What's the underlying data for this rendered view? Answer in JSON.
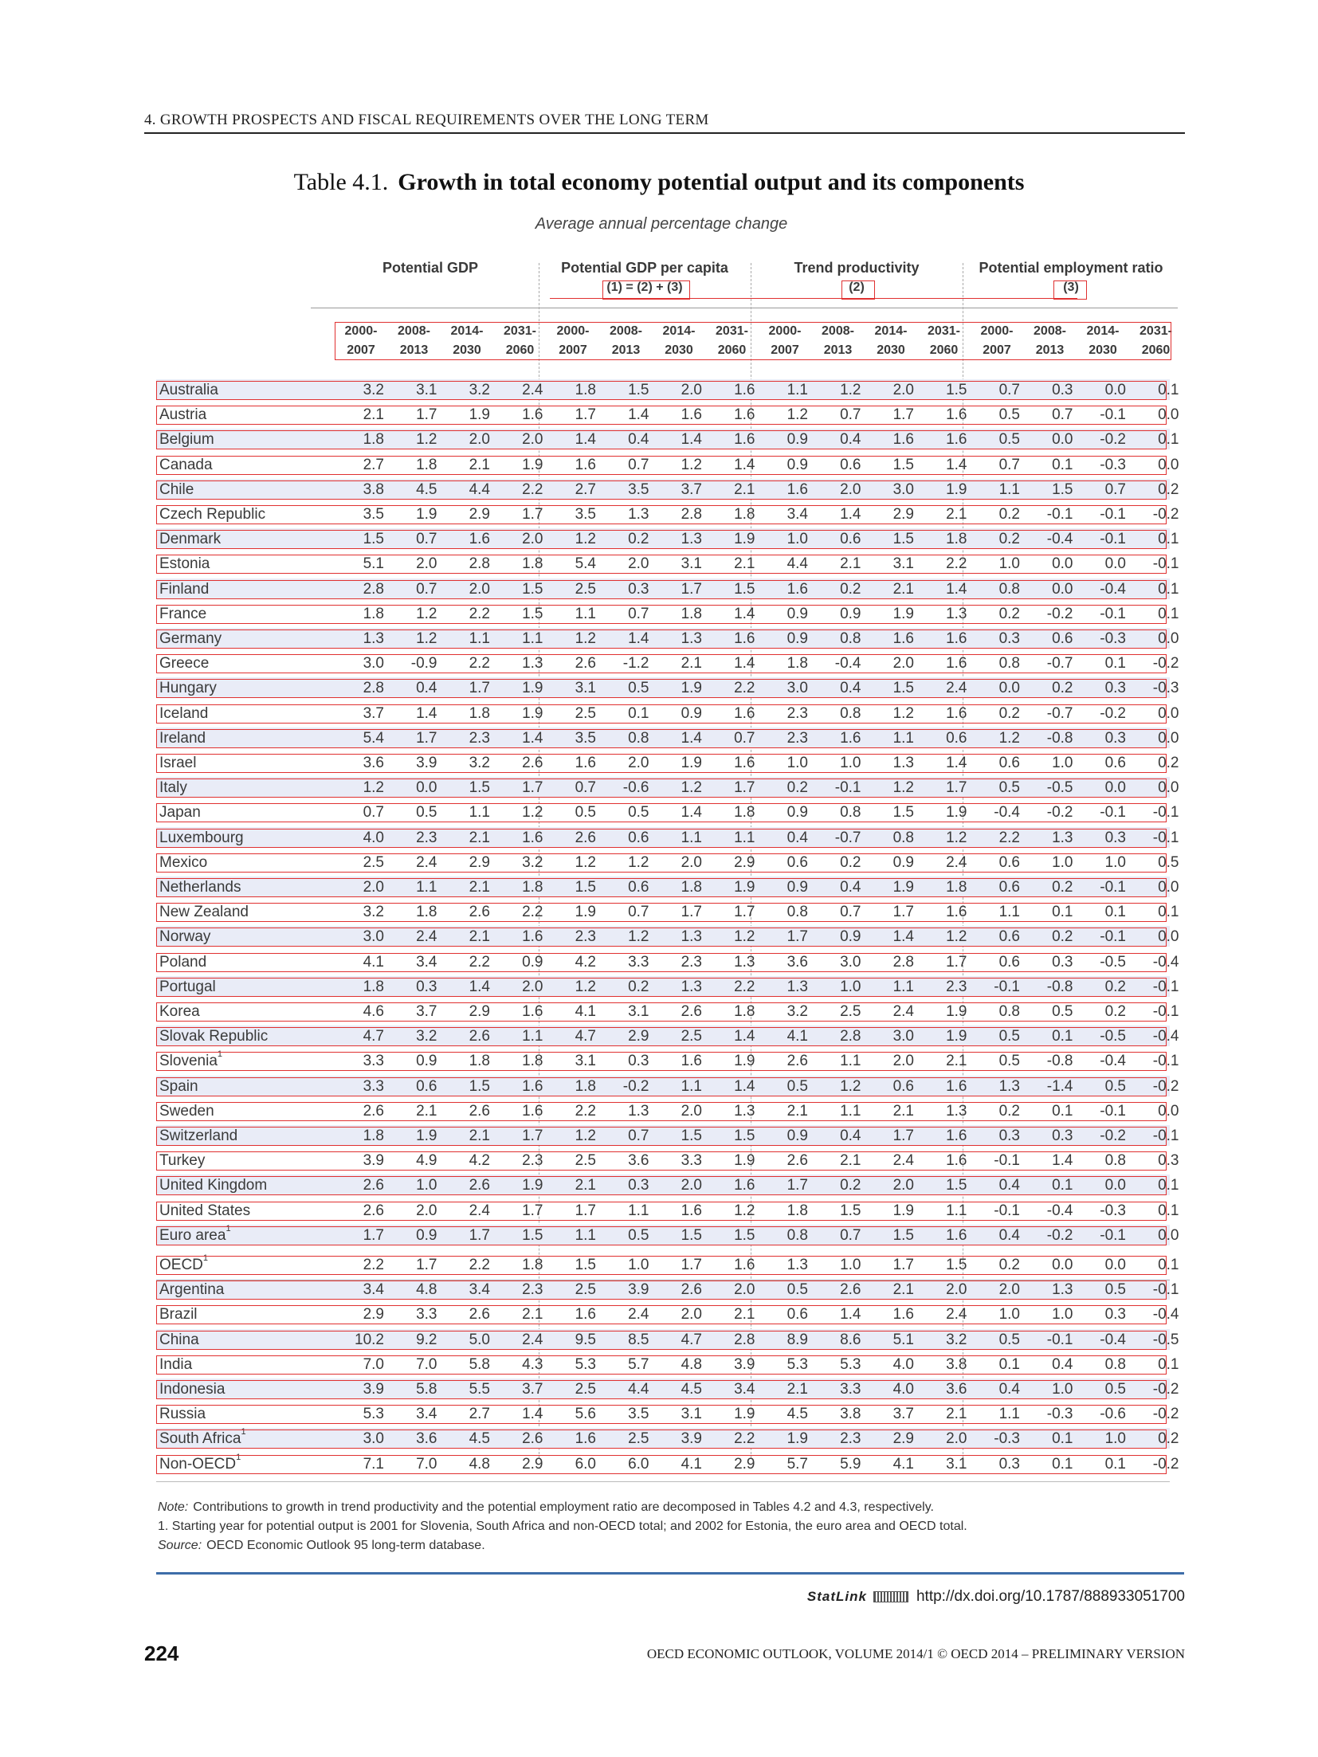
{
  "running_head": "4.   GROWTH PROSPECTS AND FISCAL REQUIREMENTS OVER THE LONG TERM",
  "table": {
    "number": "Table 4.1.",
    "title": "Growth in total economy potential output and its components",
    "subtitle": "Average annual percentage change",
    "groups": [
      {
        "label": "Potential GDP",
        "formula": ""
      },
      {
        "label": "Potential GDP per capita",
        "formula": "(1) = (2) + (3)"
      },
      {
        "label": "Trend productivity",
        "formula": "(2)"
      },
      {
        "label": "Potential employment ratio",
        "formula": "(3)"
      }
    ],
    "periods": [
      [
        "2000-",
        "2007"
      ],
      [
        "2008-",
        "2013"
      ],
      [
        "2014-",
        "2030"
      ],
      [
        "2031-",
        "2060"
      ]
    ],
    "rows": [
      {
        "label": "Australia",
        "sup": "",
        "v": [
          "3.2",
          "3.1",
          "3.2",
          "2.4",
          "1.8",
          "1.5",
          "2.0",
          "1.6",
          "1.1",
          "1.2",
          "2.0",
          "1.5",
          "0.7",
          "0.3",
          "0.0",
          "0.1"
        ]
      },
      {
        "label": "Austria",
        "sup": "",
        "v": [
          "2.1",
          "1.7",
          "1.9",
          "1.6",
          "1.7",
          "1.4",
          "1.6",
          "1.6",
          "1.2",
          "0.7",
          "1.7",
          "1.6",
          "0.5",
          "0.7",
          "-0.1",
          "0.0"
        ]
      },
      {
        "label": "Belgium",
        "sup": "",
        "v": [
          "1.8",
          "1.2",
          "2.0",
          "2.0",
          "1.4",
          "0.4",
          "1.4",
          "1.6",
          "0.9",
          "0.4",
          "1.6",
          "1.6",
          "0.5",
          "0.0",
          "-0.2",
          "0.1"
        ]
      },
      {
        "label": "Canada",
        "sup": "",
        "v": [
          "2.7",
          "1.8",
          "2.1",
          "1.9",
          "1.6",
          "0.7",
          "1.2",
          "1.4",
          "0.9",
          "0.6",
          "1.5",
          "1.4",
          "0.7",
          "0.1",
          "-0.3",
          "0.0"
        ]
      },
      {
        "label": "Chile",
        "sup": "",
        "v": [
          "3.8",
          "4.5",
          "4.4",
          "2.2",
          "2.7",
          "3.5",
          "3.7",
          "2.1",
          "1.6",
          "2.0",
          "3.0",
          "1.9",
          "1.1",
          "1.5",
          "0.7",
          "0.2"
        ]
      },
      {
        "label": "Czech Republic",
        "sup": "",
        "v": [
          "3.5",
          "1.9",
          "2.9",
          "1.7",
          "3.5",
          "1.3",
          "2.8",
          "1.8",
          "3.4",
          "1.4",
          "2.9",
          "2.1",
          "0.2",
          "-0.1",
          "-0.1",
          "-0.2"
        ]
      },
      {
        "label": "Denmark",
        "sup": "",
        "v": [
          "1.5",
          "0.7",
          "1.6",
          "2.0",
          "1.2",
          "0.2",
          "1.3",
          "1.9",
          "1.0",
          "0.6",
          "1.5",
          "1.8",
          "0.2",
          "-0.4",
          "-0.1",
          "0.1"
        ]
      },
      {
        "label": "Estonia",
        "sup": "",
        "v": [
          "5.1",
          "2.0",
          "2.8",
          "1.8",
          "5.4",
          "2.0",
          "3.1",
          "2.1",
          "4.4",
          "2.1",
          "3.1",
          "2.2",
          "1.0",
          "0.0",
          "0.0",
          "-0.1"
        ]
      },
      {
        "label": "Finland",
        "sup": "",
        "v": [
          "2.8",
          "0.7",
          "2.0",
          "1.5",
          "2.5",
          "0.3",
          "1.7",
          "1.5",
          "1.6",
          "0.2",
          "2.1",
          "1.4",
          "0.8",
          "0.0",
          "-0.4",
          "0.1"
        ]
      },
      {
        "label": "France",
        "sup": "",
        "v": [
          "1.8",
          "1.2",
          "2.2",
          "1.5",
          "1.1",
          "0.7",
          "1.8",
          "1.4",
          "0.9",
          "0.9",
          "1.9",
          "1.3",
          "0.2",
          "-0.2",
          "-0.1",
          "0.1"
        ]
      },
      {
        "label": "Germany",
        "sup": "",
        "v": [
          "1.3",
          "1.2",
          "1.1",
          "1.1",
          "1.2",
          "1.4",
          "1.3",
          "1.6",
          "0.9",
          "0.8",
          "1.6",
          "1.6",
          "0.3",
          "0.6",
          "-0.3",
          "0.0"
        ]
      },
      {
        "label": "Greece",
        "sup": "",
        "v": [
          "3.0",
          "-0.9",
          "2.2",
          "1.3",
          "2.6",
          "-1.2",
          "2.1",
          "1.4",
          "1.8",
          "-0.4",
          "2.0",
          "1.6",
          "0.8",
          "-0.7",
          "0.1",
          "-0.2"
        ]
      },
      {
        "label": "Hungary",
        "sup": "",
        "v": [
          "2.8",
          "0.4",
          "1.7",
          "1.9",
          "3.1",
          "0.5",
          "1.9",
          "2.2",
          "3.0",
          "0.4",
          "1.5",
          "2.4",
          "0.0",
          "0.2",
          "0.3",
          "-0.3"
        ]
      },
      {
        "label": "Iceland",
        "sup": "",
        "v": [
          "3.7",
          "1.4",
          "1.8",
          "1.9",
          "2.5",
          "0.1",
          "0.9",
          "1.6",
          "2.3",
          "0.8",
          "1.2",
          "1.6",
          "0.2",
          "-0.7",
          "-0.2",
          "0.0"
        ]
      },
      {
        "label": "Ireland",
        "sup": "",
        "v": [
          "5.4",
          "1.7",
          "2.3",
          "1.4",
          "3.5",
          "0.8",
          "1.4",
          "0.7",
          "2.3",
          "1.6",
          "1.1",
          "0.6",
          "1.2",
          "-0.8",
          "0.3",
          "0.0"
        ]
      },
      {
        "label": "Israel",
        "sup": "",
        "v": [
          "3.6",
          "3.9",
          "3.2",
          "2.6",
          "1.6",
          "2.0",
          "1.9",
          "1.6",
          "1.0",
          "1.0",
          "1.3",
          "1.4",
          "0.6",
          "1.0",
          "0.6",
          "0.2"
        ]
      },
      {
        "label": "Italy",
        "sup": "",
        "v": [
          "1.2",
          "0.0",
          "1.5",
          "1.7",
          "0.7",
          "-0.6",
          "1.2",
          "1.7",
          "0.2",
          "-0.1",
          "1.2",
          "1.7",
          "0.5",
          "-0.5",
          "0.0",
          "0.0"
        ]
      },
      {
        "label": "Japan",
        "sup": "",
        "v": [
          "0.7",
          "0.5",
          "1.1",
          "1.2",
          "0.5",
          "0.5",
          "1.4",
          "1.8",
          "0.9",
          "0.8",
          "1.5",
          "1.9",
          "-0.4",
          "-0.2",
          "-0.1",
          "-0.1"
        ]
      },
      {
        "label": "Luxembourg",
        "sup": "",
        "v": [
          "4.0",
          "2.3",
          "2.1",
          "1.6",
          "2.6",
          "0.6",
          "1.1",
          "1.1",
          "0.4",
          "-0.7",
          "0.8",
          "1.2",
          "2.2",
          "1.3",
          "0.3",
          "-0.1"
        ]
      },
      {
        "label": "Mexico",
        "sup": "",
        "v": [
          "2.5",
          "2.4",
          "2.9",
          "3.2",
          "1.2",
          "1.2",
          "2.0",
          "2.9",
          "0.6",
          "0.2",
          "0.9",
          "2.4",
          "0.6",
          "1.0",
          "1.0",
          "0.5"
        ]
      },
      {
        "label": "Netherlands",
        "sup": "",
        "v": [
          "2.0",
          "1.1",
          "2.1",
          "1.8",
          "1.5",
          "0.6",
          "1.8",
          "1.9",
          "0.9",
          "0.4",
          "1.9",
          "1.8",
          "0.6",
          "0.2",
          "-0.1",
          "0.0"
        ]
      },
      {
        "label": "New Zealand",
        "sup": "",
        "v": [
          "3.2",
          "1.8",
          "2.6",
          "2.2",
          "1.9",
          "0.7",
          "1.7",
          "1.7",
          "0.8",
          "0.7",
          "1.7",
          "1.6",
          "1.1",
          "0.1",
          "0.1",
          "0.1"
        ]
      },
      {
        "label": "Norway",
        "sup": "",
        "v": [
          "3.0",
          "2.4",
          "2.1",
          "1.6",
          "2.3",
          "1.2",
          "1.3",
          "1.2",
          "1.7",
          "0.9",
          "1.4",
          "1.2",
          "0.6",
          "0.2",
          "-0.1",
          "0.0"
        ]
      },
      {
        "label": "Poland",
        "sup": "",
        "v": [
          "4.1",
          "3.4",
          "2.2",
          "0.9",
          "4.2",
          "3.3",
          "2.3",
          "1.3",
          "3.6",
          "3.0",
          "2.8",
          "1.7",
          "0.6",
          "0.3",
          "-0.5",
          "-0.4"
        ]
      },
      {
        "label": "Portugal",
        "sup": "",
        "v": [
          "1.8",
          "0.3",
          "1.4",
          "2.0",
          "1.2",
          "0.2",
          "1.3",
          "2.2",
          "1.3",
          "1.0",
          "1.1",
          "2.3",
          "-0.1",
          "-0.8",
          "0.2",
          "-0.1"
        ]
      },
      {
        "label": "Korea",
        "sup": "",
        "v": [
          "4.6",
          "3.7",
          "2.9",
          "1.6",
          "4.1",
          "3.1",
          "2.6",
          "1.8",
          "3.2",
          "2.5",
          "2.4",
          "1.9",
          "0.8",
          "0.5",
          "0.2",
          "-0.1"
        ]
      },
      {
        "label": "Slovak Republic",
        "sup": "",
        "v": [
          "4.7",
          "3.2",
          "2.6",
          "1.1",
          "4.7",
          "2.9",
          "2.5",
          "1.4",
          "4.1",
          "2.8",
          "3.0",
          "1.9",
          "0.5",
          "0.1",
          "-0.5",
          "-0.4"
        ]
      },
      {
        "label": "Slovenia",
        "sup": "1",
        "v": [
          "3.3",
          "0.9",
          "1.8",
          "1.8",
          "3.1",
          "0.3",
          "1.6",
          "1.9",
          "2.6",
          "1.1",
          "2.0",
          "2.1",
          "0.5",
          "-0.8",
          "-0.4",
          "-0.1"
        ]
      },
      {
        "label": "Spain",
        "sup": "",
        "v": [
          "3.3",
          "0.6",
          "1.5",
          "1.6",
          "1.8",
          "-0.2",
          "1.1",
          "1.4",
          "0.5",
          "1.2",
          "0.6",
          "1.6",
          "1.3",
          "-1.4",
          "0.5",
          "-0.2"
        ]
      },
      {
        "label": "Sweden",
        "sup": "",
        "v": [
          "2.6",
          "2.1",
          "2.6",
          "1.6",
          "2.2",
          "1.3",
          "2.0",
          "1.3",
          "2.1",
          "1.1",
          "2.1",
          "1.3",
          "0.2",
          "0.1",
          "-0.1",
          "0.0"
        ]
      },
      {
        "label": "Switzerland",
        "sup": "",
        "v": [
          "1.8",
          "1.9",
          "2.1",
          "1.7",
          "1.2",
          "0.7",
          "1.5",
          "1.5",
          "0.9",
          "0.4",
          "1.7",
          "1.6",
          "0.3",
          "0.3",
          "-0.2",
          "-0.1"
        ]
      },
      {
        "label": "Turkey",
        "sup": "",
        "v": [
          "3.9",
          "4.9",
          "4.2",
          "2.3",
          "2.5",
          "3.6",
          "3.3",
          "1.9",
          "2.6",
          "2.1",
          "2.4",
          "1.6",
          "-0.1",
          "1.4",
          "0.8",
          "0.3"
        ]
      },
      {
        "label": "United Kingdom",
        "sup": "",
        "v": [
          "2.6",
          "1.0",
          "2.6",
          "1.9",
          "2.1",
          "0.3",
          "2.0",
          "1.6",
          "1.7",
          "0.2",
          "2.0",
          "1.5",
          "0.4",
          "0.1",
          "0.0",
          "0.1"
        ]
      },
      {
        "label": "United States",
        "sup": "",
        "v": [
          "2.6",
          "2.0",
          "2.4",
          "1.7",
          "1.7",
          "1.1",
          "1.6",
          "1.2",
          "1.8",
          "1.5",
          "1.9",
          "1.1",
          "-0.1",
          "-0.4",
          "-0.3",
          "0.1"
        ]
      },
      {
        "label": "Euro area",
        "sup": "1",
        "v": [
          "1.7",
          "0.9",
          "1.7",
          "1.5",
          "1.1",
          "0.5",
          "1.5",
          "1.5",
          "0.8",
          "0.7",
          "1.5",
          "1.6",
          "0.4",
          "-0.2",
          "-0.1",
          "0.0"
        ]
      },
      {
        "label": "OECD",
        "sup": "1",
        "v": [
          "2.2",
          "1.7",
          "2.2",
          "1.8",
          "1.5",
          "1.0",
          "1.7",
          "1.6",
          "1.3",
          "1.0",
          "1.7",
          "1.5",
          "0.2",
          "0.0",
          "0.0",
          "0.1"
        ]
      },
      {
        "label": "Argentina",
        "sup": "",
        "v": [
          "3.4",
          "4.8",
          "3.4",
          "2.3",
          "2.5",
          "3.9",
          "2.6",
          "2.0",
          "0.5",
          "2.6",
          "2.1",
          "2.0",
          "2.0",
          "1.3",
          "0.5",
          "-0.1"
        ]
      },
      {
        "label": "Brazil",
        "sup": "",
        "v": [
          "2.9",
          "3.3",
          "2.6",
          "2.1",
          "1.6",
          "2.4",
          "2.0",
          "2.1",
          "0.6",
          "1.4",
          "1.6",
          "2.4",
          "1.0",
          "1.0",
          "0.3",
          "-0.4"
        ]
      },
      {
        "label": "China",
        "sup": "",
        "v": [
          "10.2",
          "9.2",
          "5.0",
          "2.4",
          "9.5",
          "8.5",
          "4.7",
          "2.8",
          "8.9",
          "8.6",
          "5.1",
          "3.2",
          "0.5",
          "-0.1",
          "-0.4",
          "-0.5"
        ]
      },
      {
        "label": "India",
        "sup": "",
        "v": [
          "7.0",
          "7.0",
          "5.8",
          "4.3",
          "5.3",
          "5.7",
          "4.8",
          "3.9",
          "5.3",
          "5.3",
          "4.0",
          "3.8",
          "0.1",
          "0.4",
          "0.8",
          "0.1"
        ]
      },
      {
        "label": "Indonesia",
        "sup": "",
        "v": [
          "3.9",
          "5.8",
          "5.5",
          "3.7",
          "2.5",
          "4.4",
          "4.5",
          "3.4",
          "2.1",
          "3.3",
          "4.0",
          "3.6",
          "0.4",
          "1.0",
          "0.5",
          "-0.2"
        ]
      },
      {
        "label": "Russia",
        "sup": "",
        "v": [
          "5.3",
          "3.4",
          "2.7",
          "1.4",
          "5.6",
          "3.5",
          "3.1",
          "1.9",
          "4.5",
          "3.8",
          "3.7",
          "2.1",
          "1.1",
          "-0.3",
          "-0.6",
          "-0.2"
        ]
      },
      {
        "label": "South Africa",
        "sup": "1",
        "v": [
          "3.0",
          "3.6",
          "4.5",
          "2.6",
          "1.6",
          "2.5",
          "3.9",
          "2.2",
          "1.9",
          "2.3",
          "2.9",
          "2.0",
          "-0.3",
          "0.1",
          "1.0",
          "0.2"
        ]
      },
      {
        "label": "Non-OECD",
        "sup": "1",
        "v": [
          "7.1",
          "7.0",
          "4.8",
          "2.9",
          "6.0",
          "6.0",
          "4.1",
          "2.9",
          "5.7",
          "5.9",
          "4.1",
          "3.1",
          "0.3",
          "0.1",
          "0.1",
          "-0.2"
        ]
      }
    ]
  },
  "notes": {
    "note_label": "Note:",
    "note_text": "Contributions to growth in trend productivity and the potential employment ratio are decomposed in Tables 4.2 and 4.3, respectively.",
    "footnote": "1.  Starting year for potential output is 2001 for Slovenia, South Africa and non-OECD total; and 2002 for Estonia, the euro area and OECD total.",
    "source_label": "Source:",
    "source_text": "OECD Economic Outlook 95 long-term database."
  },
  "statlink": {
    "label": "StatLink",
    "url": "http://dx.doi.org/10.1787/888933051700"
  },
  "page_number": "224",
  "footer": "OECD ECONOMIC OUTLOOK, VOLUME 2014/1 © OECD 2014 – PRELIMINARY VERSION"
}
